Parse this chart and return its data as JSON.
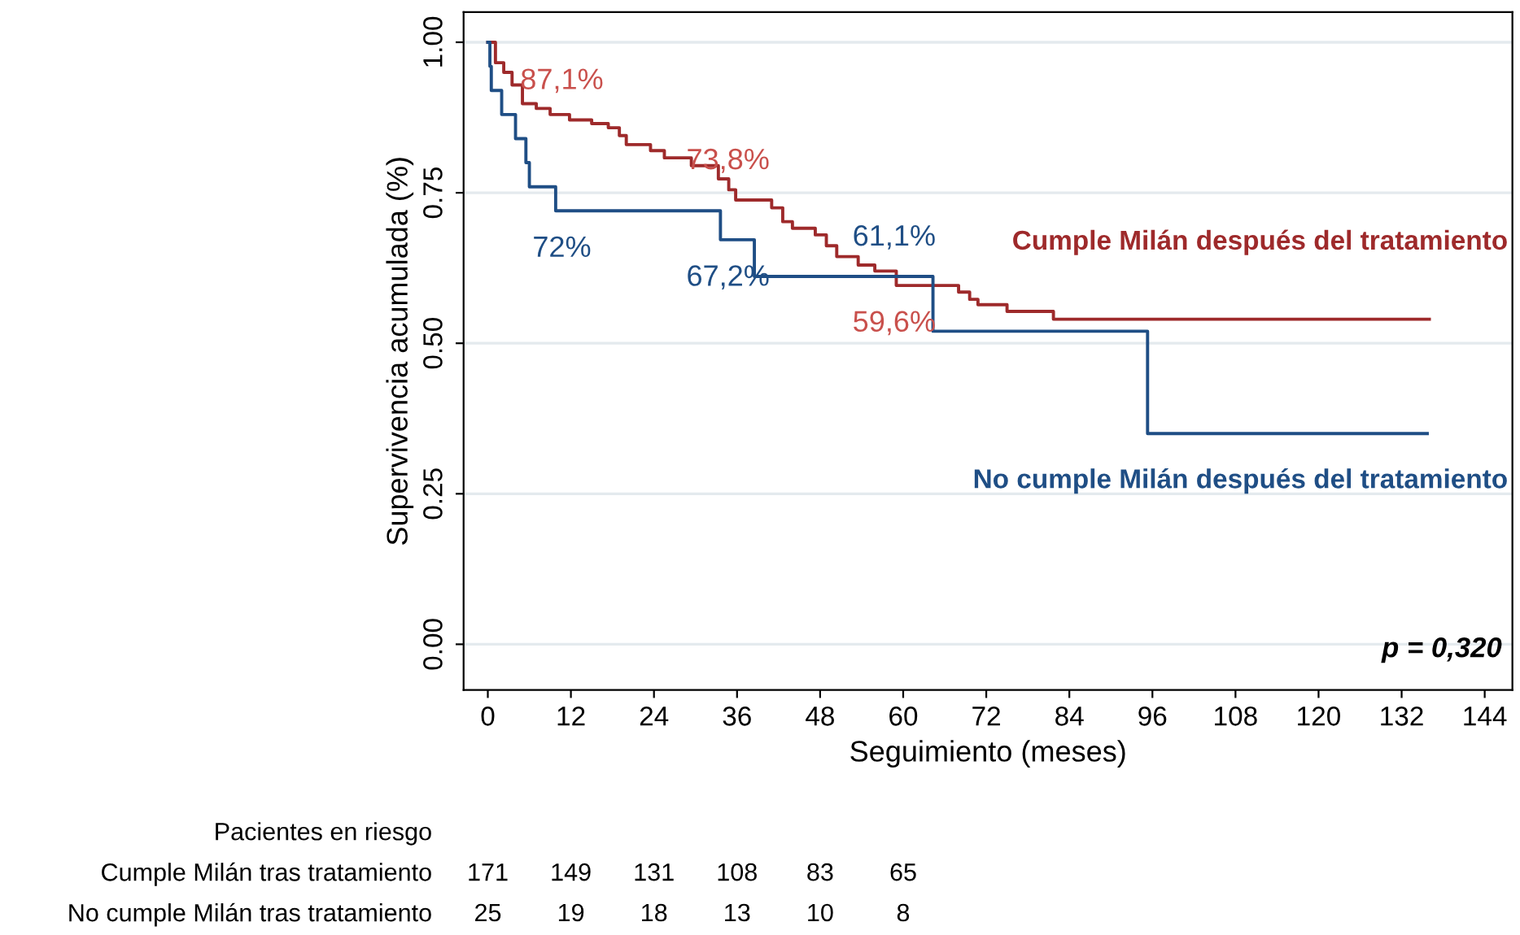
{
  "chart_data": [
    {
      "type": "step",
      "xlabel": "Seguimiento (meses)",
      "ylabel": "Supervivencia acumulada (%)",
      "xlim": [
        -3.5,
        148
      ],
      "ylim": [
        -0.076,
        1.05
      ],
      "xticks": [
        0,
        12,
        24,
        36,
        48,
        60,
        72,
        84,
        96,
        108,
        120,
        132,
        144
      ],
      "yticks": [
        {
          "value": 0,
          "label": "0.00"
        },
        {
          "value": 0.25,
          "label": "0.25"
        },
        {
          "value": 0.5,
          "label": "0.50"
        },
        {
          "value": 0.75,
          "label": "0.75"
        },
        {
          "value": 1,
          "label": "1.00"
        }
      ],
      "grid": "y",
      "legend": false,
      "series": [
        {
          "name": "Cumple Milán después del tratamiento",
          "color": "#9e2a2b",
          "x": [
            0,
            1.1,
            2.3,
            3.5,
            5,
            7,
            9,
            11.8,
            15,
            17.4,
            19,
            20,
            23.5,
            25.5,
            29.4,
            33.3,
            34.8,
            35.8,
            41,
            42.6,
            44,
            47.3,
            48.9,
            50.4,
            53.5,
            55.9,
            59,
            68,
            69.6,
            70.8,
            75,
            81.7,
            136
          ],
          "values": [
            1.0,
            0.966,
            0.95,
            0.929,
            0.898,
            0.89,
            0.88,
            0.871,
            0.865,
            0.858,
            0.845,
            0.83,
            0.82,
            0.808,
            0.795,
            0.773,
            0.755,
            0.738,
            0.725,
            0.702,
            0.691,
            0.68,
            0.662,
            0.644,
            0.63,
            0.62,
            0.596,
            0.585,
            0.573,
            0.564,
            0.553,
            0.54,
            0.54
          ]
        },
        {
          "name": "No cumple Milán después del tratamiento",
          "color": "#1f4e85",
          "x": [
            0,
            0.3,
            0.5,
            2,
            4,
            5.5,
            6,
            9.8,
            33.6,
            38.5,
            64.3,
            95.3,
            135.7
          ],
          "values": [
            1.0,
            0.96,
            0.92,
            0.88,
            0.84,
            0.8,
            0.76,
            0.72,
            0.672,
            0.611,
            0.52,
            0.35,
            0.35
          ]
        }
      ],
      "annotations": [
        {
          "text": "87,1%",
          "x": 12,
          "y": 0.871
        },
        {
          "text": "73,8%",
          "x": 36,
          "y": 0.738
        },
        {
          "text": "59,6%",
          "x": 60,
          "y": 0.596
        },
        {
          "text": "72%",
          "x": 12,
          "y": 0.72
        },
        {
          "text": "67,2%",
          "x": 36,
          "y": 0.672
        },
        {
          "text": "61,1%",
          "x": 60,
          "y": 0.611
        },
        "p = 0,320"
      ]
    },
    {
      "type": "other",
      "title": "Pacientes en riesgo",
      "y_categories": [
        "Cumple Milán tras tratamiento",
        "No cumple Milán tras tratamiento"
      ],
      "categories": [
        null,
        null,
        null,
        null,
        null,
        null
      ],
      "cell_labels": [
        [
          "171",
          "149",
          "131",
          "108",
          "83",
          "65"
        ],
        [
          "25",
          "19",
          "18",
          "13",
          "10",
          "8"
        ]
      ]
    }
  ]
}
